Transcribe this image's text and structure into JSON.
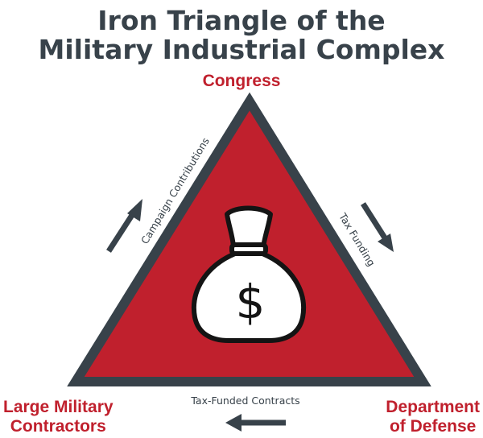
{
  "title": {
    "line1": "Iron Triangle of the",
    "line2": "Military Industrial Complex"
  },
  "nodes": {
    "top": "Congress",
    "bottom_left": {
      "line1": "Large Military",
      "line2": "Contractors"
    },
    "bottom_right": {
      "line1": "Department",
      "line2": "of Defense"
    }
  },
  "edges": {
    "left": "Campaign Contributions",
    "right": "Tax Funding",
    "bottom": "Tax-Funded Contracts"
  },
  "center_symbol": "$",
  "colors": {
    "title": "#38424a",
    "node_text": "#c0202d",
    "triangle_fill": "#c0202d",
    "triangle_border": "#38424a",
    "arrow": "#38424a"
  },
  "icons": {
    "center": "money-bag-icon",
    "left_arrow": "arrow-up-right-icon",
    "right_arrow": "arrow-down-right-icon",
    "bottom_arrow": "arrow-left-icon"
  }
}
